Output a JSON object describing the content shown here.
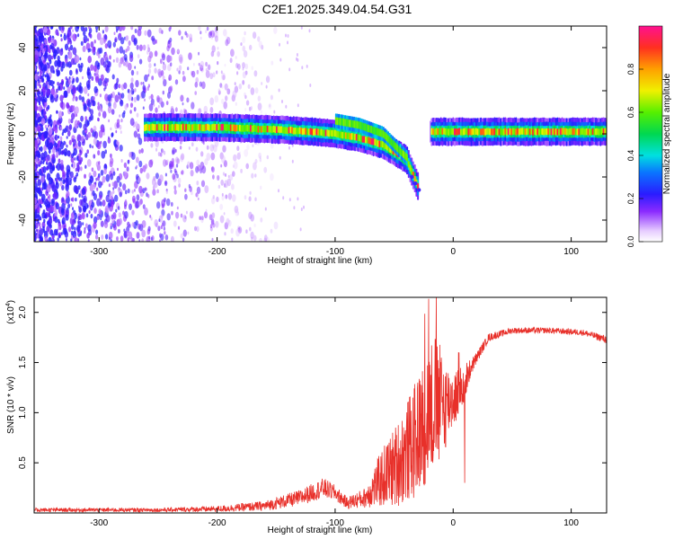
{
  "title": "C2E1.2025.349.04.54.G31",
  "chart_data": [
    {
      "type": "heatmap",
      "name": "spectrogram",
      "xlabel": "Height of straight line (km)",
      "ylabel": "Frequency (Hz)",
      "xlim": [
        -355,
        130
      ],
      "ylim": [
        -50,
        50
      ],
      "xticks": [
        -300,
        -200,
        -100,
        0,
        100
      ],
      "yticks": [
        -40,
        -20,
        0,
        20,
        40
      ],
      "colorbar": {
        "label": "Normalized spectral amplitude",
        "range": [
          0,
          1
        ],
        "ticks": [
          0.0,
          0.2,
          0.4,
          0.6,
          0.8
        ]
      },
      "signal_trace": {
        "description_x": [
          -260,
          -200,
          -150,
          -120,
          -100,
          -80,
          -60,
          -40,
          -30,
          -20,
          0,
          50,
          130
        ],
        "frequency": [
          3,
          3,
          2,
          1,
          0,
          -2,
          -5,
          -12,
          -25,
          2,
          1,
          1,
          1
        ]
      }
    },
    {
      "type": "line",
      "name": "snr",
      "xlabel": "Height of straight line (km)",
      "ylabel": "SNR (10 * v/v)",
      "multiplier_label_base": "(x10",
      "multiplier_label_exp": "4",
      "multiplier_label_close": ")",
      "xlim": [
        -355,
        130
      ],
      "ylim": [
        0,
        2.15
      ],
      "xticks": [
        -300,
        -200,
        -100,
        0,
        100
      ],
      "yticks": [
        0.5,
        1.0,
        1.5,
        2.0
      ],
      "ytick_labels": [
        "0.5",
        "1.0",
        "1.5",
        "2.0"
      ],
      "series_color": "#e8302a",
      "envelope": {
        "x": [
          -355,
          -250,
          -200,
          -160,
          -130,
          -110,
          -100,
          -90,
          -75,
          -60,
          -50,
          -40,
          -30,
          -25,
          -20,
          -15,
          -10,
          -5,
          0,
          5,
          10,
          15,
          20,
          30,
          50,
          80,
          110,
          130
        ],
        "mean": [
          0.03,
          0.03,
          0.04,
          0.07,
          0.15,
          0.25,
          0.2,
          0.1,
          0.15,
          0.35,
          0.45,
          0.6,
          0.75,
          0.9,
          1.05,
          1.1,
          1.05,
          1.1,
          1.15,
          1.2,
          1.3,
          1.45,
          1.55,
          1.75,
          1.82,
          1.82,
          1.8,
          1.73
        ],
        "noise": [
          0.02,
          0.02,
          0.03,
          0.05,
          0.08,
          0.1,
          0.08,
          0.06,
          0.1,
          0.3,
          0.4,
          0.5,
          0.6,
          0.65,
          0.7,
          0.7,
          0.6,
          0.4,
          0.3,
          0.25,
          0.2,
          0.08,
          0.06,
          0.04,
          0.03,
          0.03,
          0.03,
          0.04
        ]
      }
    }
  ]
}
